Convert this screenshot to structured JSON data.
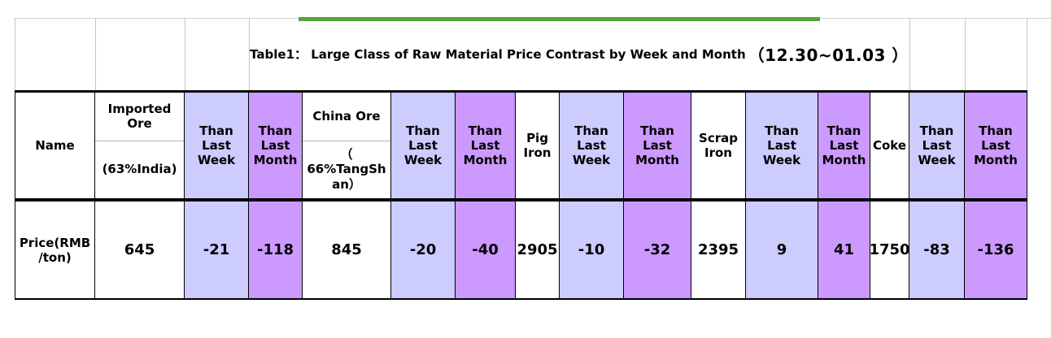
{
  "title": {
    "text": "Table1： Large Class of Raw Material Price Contrast by Week and Month",
    "period": "（12.30~01.03 ）"
  },
  "colors": {
    "than_last_week_bg": "#ccccff",
    "than_last_month_bg": "#cc99ff",
    "green_rule": "#56a435",
    "border": "#000000",
    "gridline": "#c4c4c4"
  },
  "table": {
    "columns": [
      {
        "header": "Name",
        "value": "Price(RMB\n/ton)",
        "bg": "white"
      },
      {
        "header": "Imported Ore",
        "subheader": "(63%India)",
        "value": "645",
        "bg": "white"
      },
      {
        "header": "Than Last Week",
        "value": "-21",
        "bg": "lavender"
      },
      {
        "header": "Than Last Month",
        "value": "-118",
        "bg": "purple"
      },
      {
        "header": "China Ore",
        "subheader": "（\n66%TangShan）",
        "value": "845",
        "bg": "white"
      },
      {
        "header": "Than Last Week",
        "value": "-20",
        "bg": "lavender"
      },
      {
        "header": "Than Last Month",
        "value": "-40",
        "bg": "purple"
      },
      {
        "header": "Pig Iron",
        "value": "2905",
        "bg": "white"
      },
      {
        "header": "Than Last Week",
        "value": "-10",
        "bg": "lavender"
      },
      {
        "header": "Than Last Month",
        "value": "-32",
        "bg": "purple"
      },
      {
        "header": "Scrap Iron",
        "value": "2395",
        "bg": "white"
      },
      {
        "header": "Than Last Week",
        "value": "9",
        "bg": "lavender"
      },
      {
        "header": "Than Last Month",
        "value": "41",
        "bg": "purple"
      },
      {
        "header": "Coke",
        "value": "1750",
        "bg": "white"
      },
      {
        "header": "Than Last Week",
        "value": "-83",
        "bg": "lavender"
      },
      {
        "header": "Than Last Month",
        "value": "-136",
        "bg": "purple"
      }
    ]
  }
}
